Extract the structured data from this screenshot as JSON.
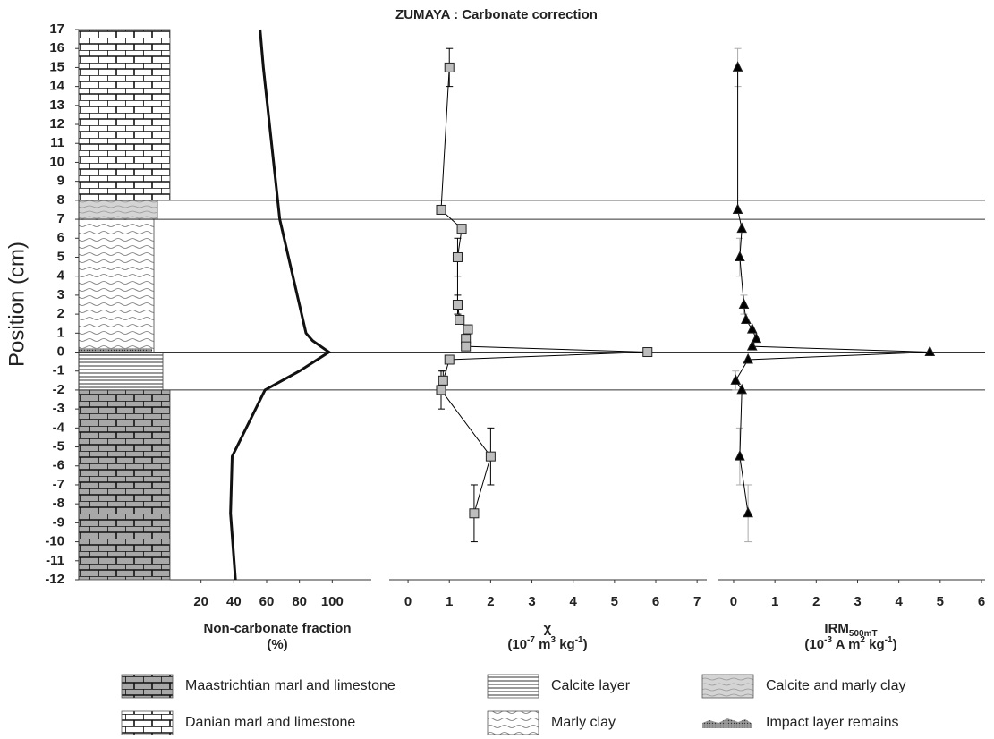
{
  "chart_data": [
    {
      "type": "line",
      "title": "ZUMAYA : Carbonate correction",
      "ylabel": "Position (cm)",
      "ylim": [
        -12,
        17
      ],
      "yticks": [
        -12,
        -11,
        -10,
        -9,
        -8,
        -7,
        -6,
        -5,
        -4,
        -3,
        -2,
        -1,
        0,
        1,
        2,
        3,
        4,
        5,
        6,
        7,
        8,
        9,
        10,
        11,
        12,
        13,
        14,
        15,
        16,
        17
      ],
      "xlim": [
        0,
        120
      ],
      "xticks": [
        20,
        40,
        60,
        80,
        100
      ],
      "xlabel": [
        [
          {
            "text": "Non-carbonate fraction"
          }
        ],
        [
          {
            "text": "(%)"
          }
        ]
      ],
      "y": [
        17,
        15,
        7,
        1,
        0.6,
        0,
        -1,
        -2,
        -5.5,
        -8.5,
        -12
      ],
      "values": [
        56,
        58,
        68,
        84,
        88,
        98,
        80,
        59,
        39,
        38,
        41
      ],
      "color": "#111111",
      "line_width": 3,
      "marker": null,
      "boundaries": [
        8,
        7,
        0,
        -2
      ],
      "lithology": [
        {
          "name": "Maastrichtian marl and limestone",
          "from": -12,
          "to": -2,
          "pattern": "brick-gray"
        },
        {
          "name": "Danian marl and limestone",
          "from": 8,
          "to": 17,
          "pattern": "brick-white"
        },
        {
          "name": "Calcite layer",
          "from": -2,
          "to": 0,
          "pattern": "hlines"
        },
        {
          "name": "Marly clay",
          "from": 0,
          "to": 7,
          "pattern": "waves"
        },
        {
          "name": "Calcite and marly clay",
          "from": 7,
          "to": 8,
          "pattern": "waves-gray"
        },
        {
          "name": "Impact layer remains",
          "from": 0,
          "to": 0.2,
          "pattern": "dots"
        }
      ]
    },
    {
      "type": "line",
      "xlim": [
        -0.5,
        7.3
      ],
      "xticks": [
        0,
        1,
        2,
        3,
        4,
        5,
        6,
        7
      ],
      "xlabel": [
        [
          {
            "text": "χ"
          }
        ],
        [
          {
            "text": "(10"
          },
          {
            "text": "-7",
            "shift": "super"
          },
          {
            "text": " m"
          },
          {
            "text": "3",
            "shift": "super"
          },
          {
            "text": " kg"
          },
          {
            "text": "-1",
            "shift": "super"
          },
          {
            "text": ")"
          }
        ]
      ],
      "y": [
        15,
        7.5,
        6.5,
        5,
        2.5,
        1.7,
        1.2,
        0.7,
        0.3,
        0,
        -0.4,
        -1.5,
        -2,
        -5.5,
        -8.5
      ],
      "values": [
        1.0,
        0.8,
        1.3,
        1.2,
        1.2,
        1.25,
        1.45,
        1.4,
        1.4,
        5.8,
        1.0,
        0.85,
        0.8,
        2.0,
        1.6
      ],
      "yerr": [
        1,
        null,
        null,
        1,
        0.5,
        null,
        null,
        null,
        null,
        null,
        null,
        0.5,
        1,
        1.5,
        1.5
      ],
      "color": "#000000",
      "line_width": 1,
      "marker": "square",
      "marker_color": "#bdbdbd",
      "error_color": "#000000"
    },
    {
      "type": "line",
      "xlim": [
        -0.4,
        6
      ],
      "xticks": [
        0,
        1,
        2,
        3,
        4,
        5,
        6
      ],
      "xlabel": [
        [
          {
            "text": "IRM"
          },
          {
            "text": "500mT",
            "shift": "sub"
          }
        ],
        [
          {
            "text": "(10"
          },
          {
            "text": "-3",
            "shift": "super"
          },
          {
            "text": " A m"
          },
          {
            "text": "2",
            "shift": "super"
          },
          {
            "text": " kg"
          },
          {
            "text": "-1",
            "shift": "super"
          },
          {
            "text": ")"
          }
        ]
      ],
      "y": [
        15,
        7.5,
        6.5,
        5,
        2.5,
        1.7,
        1.2,
        0.7,
        0.3,
        0,
        -0.4,
        -1.5,
        -2,
        -5.5,
        -8.5
      ],
      "values": [
        0.1,
        0.1,
        0.2,
        0.15,
        0.25,
        0.3,
        0.45,
        0.55,
        0.45,
        4.75,
        0.35,
        0.05,
        0.2,
        0.15,
        0.35
      ],
      "yerr": [
        1,
        null,
        null,
        1,
        0.5,
        null,
        null,
        null,
        null,
        null,
        null,
        0.5,
        null,
        1.5,
        1.5
      ],
      "color": "#000000",
      "line_width": 1,
      "marker": "triangle",
      "marker_color": "#000000",
      "error_color": "#aaaaaa"
    }
  ]
}
